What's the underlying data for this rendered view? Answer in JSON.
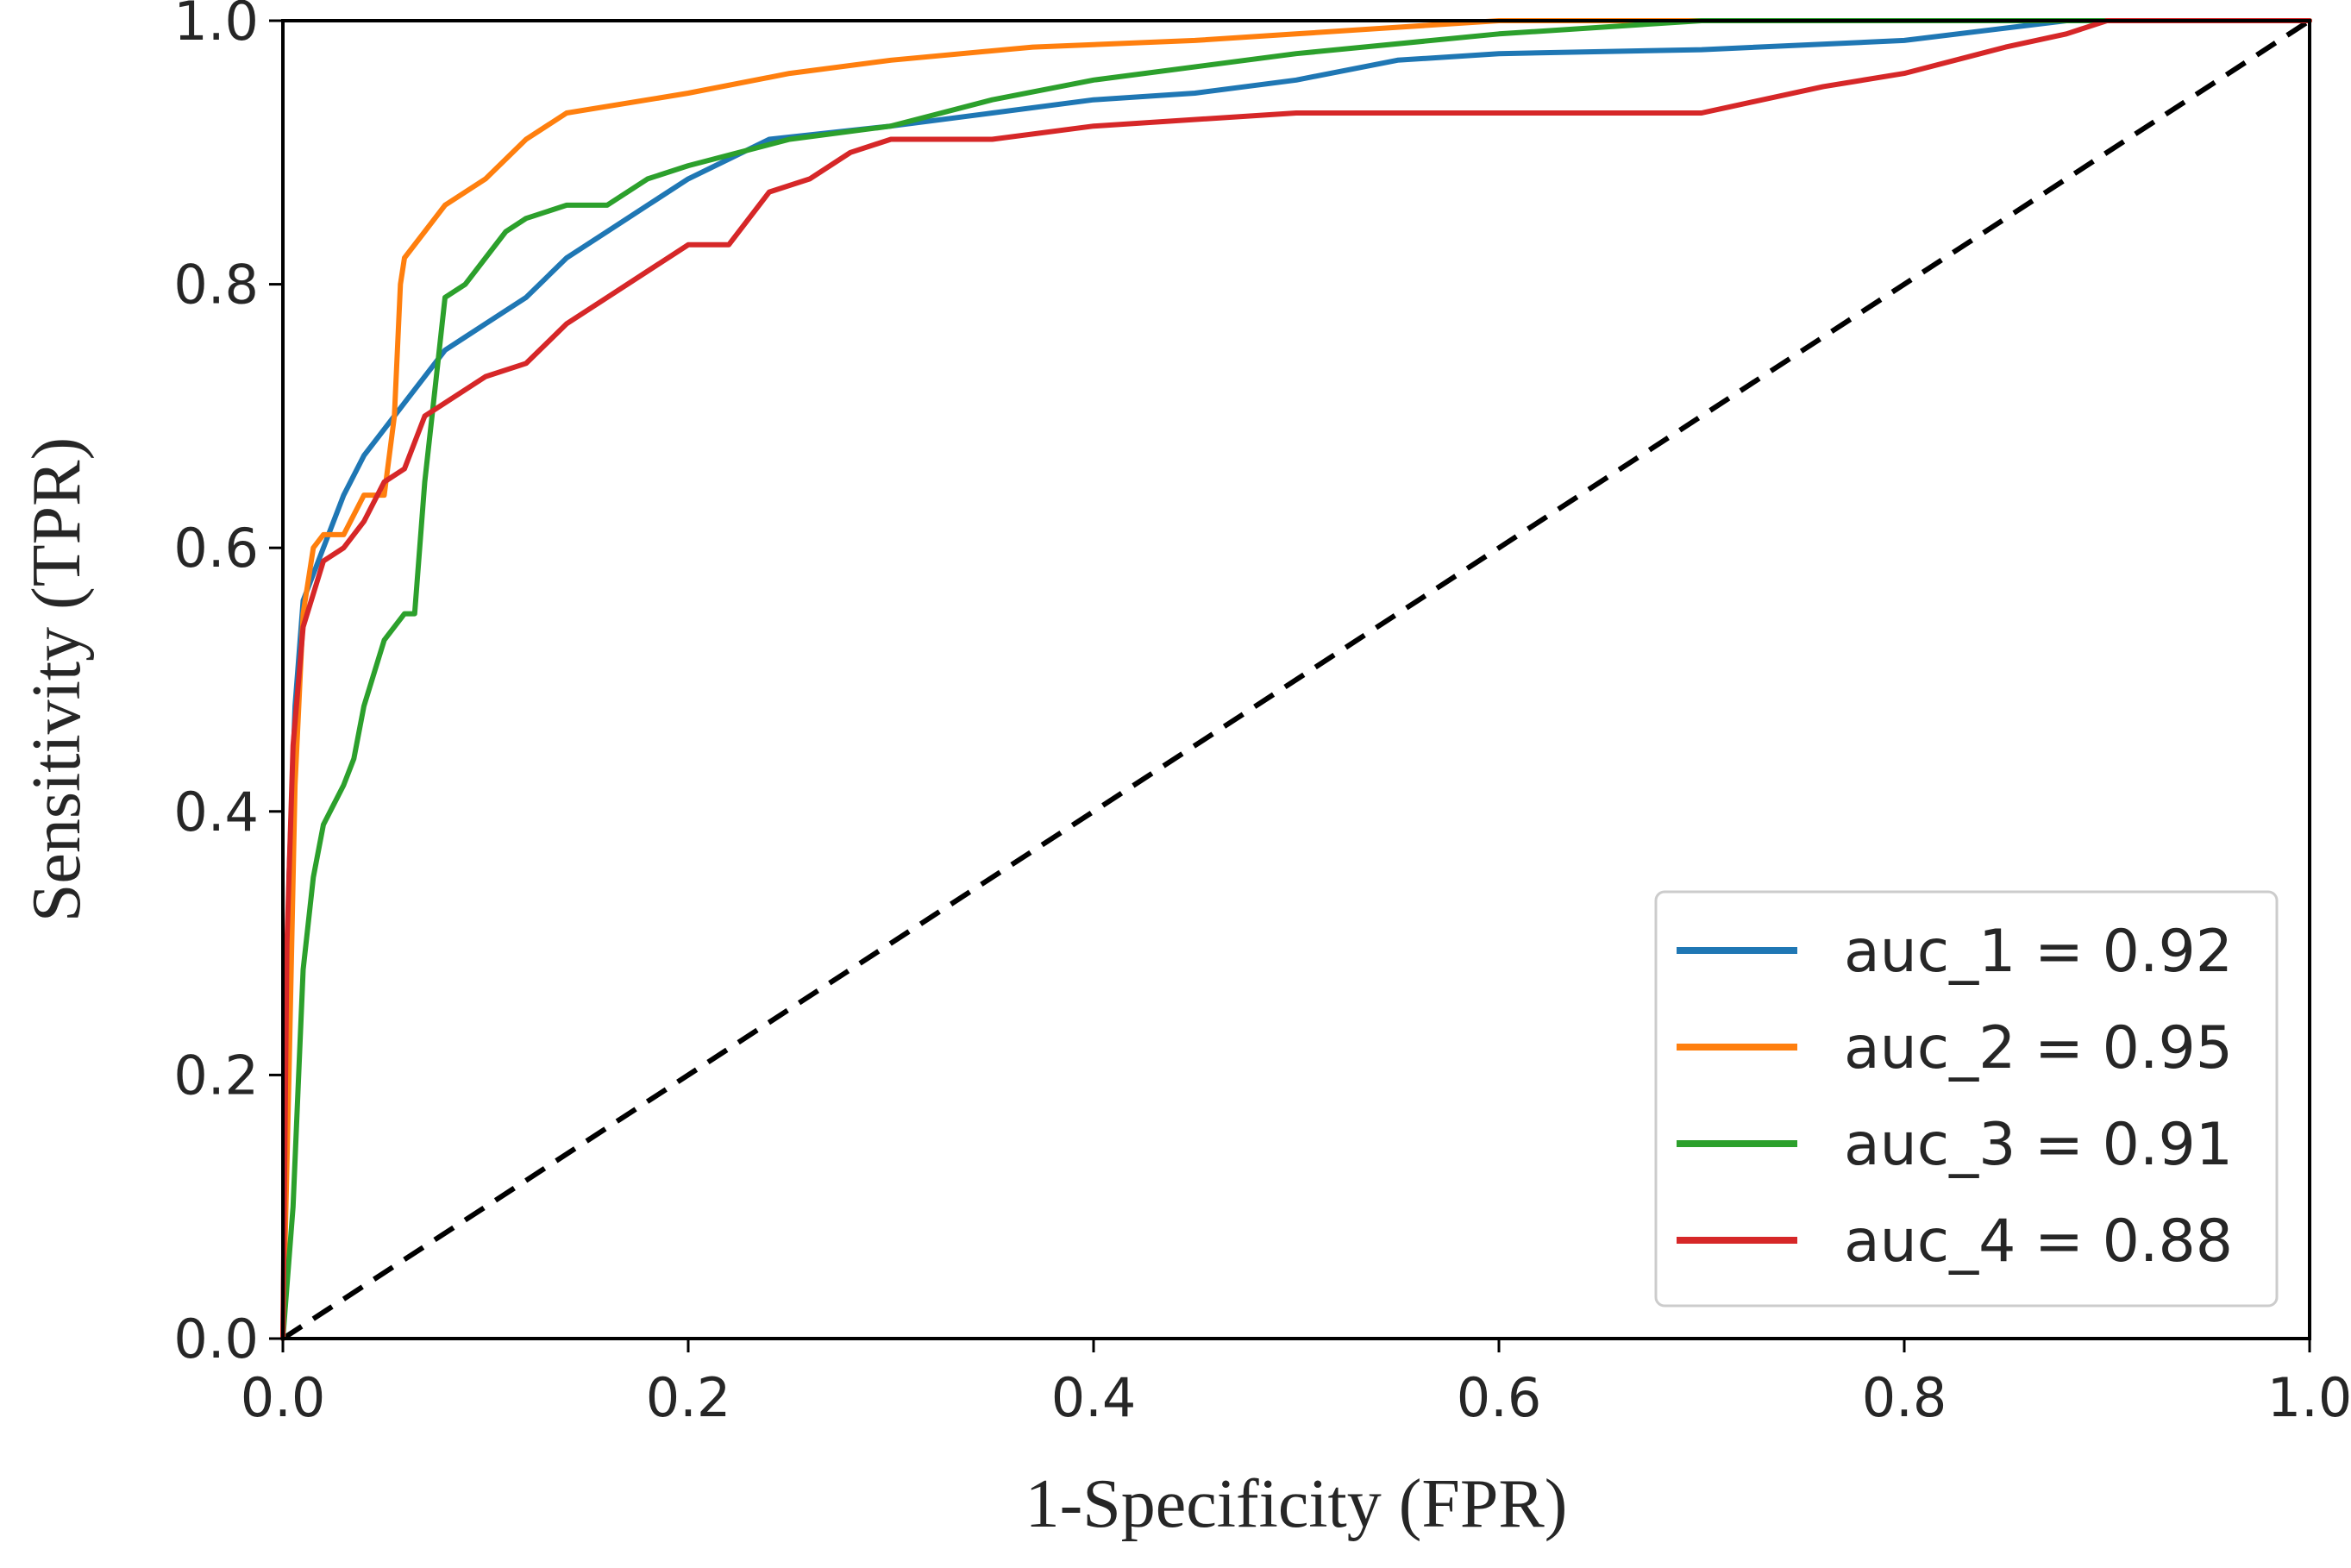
{
  "chart_data": {
    "type": "line",
    "title": "",
    "xlabel": "1-Specificity (FPR)",
    "ylabel": "Sensitivity (TPR)",
    "xlim": [
      0.0,
      1.0
    ],
    "ylim": [
      0.0,
      1.0
    ],
    "xticks": [
      0.0,
      0.2,
      0.4,
      0.6,
      0.8,
      1.0
    ],
    "yticks": [
      0.0,
      0.2,
      0.4,
      0.6,
      0.8,
      1.0
    ],
    "xtick_labels": [
      "0.0",
      "0.2",
      "0.4",
      "0.6",
      "0.8",
      "1.0"
    ],
    "ytick_labels": [
      "0.0",
      "0.2",
      "0.4",
      "0.6",
      "0.8",
      "1.0"
    ],
    "grid": false,
    "legend_position": "lower-right",
    "reference_line": {
      "style": "dashed",
      "color": "#000000",
      "x": [
        0.0,
        1.0
      ],
      "y": [
        0.0,
        1.0
      ]
    },
    "series": [
      {
        "name": "auc_1 = 0.92",
        "color": "#1f77b4",
        "x": [
          0.0,
          0.003,
          0.006,
          0.01,
          0.02,
          0.03,
          0.04,
          0.05,
          0.06,
          0.07,
          0.08,
          0.09,
          0.1,
          0.12,
          0.14,
          0.16,
          0.18,
          0.2,
          0.24,
          0.3,
          0.35,
          0.4,
          0.45,
          0.5,
          0.55,
          0.6,
          0.7,
          0.8,
          0.88,
          1.0
        ],
        "y": [
          0.0,
          0.35,
          0.48,
          0.56,
          0.6,
          0.64,
          0.67,
          0.69,
          0.71,
          0.73,
          0.75,
          0.76,
          0.77,
          0.79,
          0.82,
          0.84,
          0.86,
          0.88,
          0.91,
          0.92,
          0.93,
          0.94,
          0.945,
          0.955,
          0.97,
          0.975,
          0.978,
          0.985,
          1.0,
          1.0
        ]
      },
      {
        "name": "auc_2 = 0.95",
        "color": "#ff7f0e",
        "x": [
          0.0,
          0.003,
          0.006,
          0.01,
          0.015,
          0.02,
          0.03,
          0.04,
          0.05,
          0.055,
          0.058,
          0.06,
          0.07,
          0.08,
          0.1,
          0.12,
          0.14,
          0.18,
          0.2,
          0.25,
          0.3,
          0.37,
          0.45,
          0.5,
          0.55,
          0.6,
          0.7,
          1.0
        ],
        "y": [
          0.0,
          0.2,
          0.42,
          0.55,
          0.6,
          0.61,
          0.61,
          0.64,
          0.64,
          0.7,
          0.8,
          0.82,
          0.84,
          0.86,
          0.88,
          0.91,
          0.93,
          0.94,
          0.945,
          0.96,
          0.97,
          0.98,
          0.985,
          0.99,
          0.995,
          1.0,
          1.0,
          1.0
        ]
      },
      {
        "name": "auc_3 = 0.91",
        "color": "#2ca02c",
        "x": [
          0.0,
          0.005,
          0.01,
          0.015,
          0.02,
          0.03,
          0.035,
          0.04,
          0.05,
          0.06,
          0.065,
          0.07,
          0.075,
          0.08,
          0.09,
          0.1,
          0.11,
          0.12,
          0.14,
          0.16,
          0.18,
          0.2,
          0.25,
          0.3,
          0.35,
          0.4,
          0.5,
          0.6,
          0.7,
          1.0
        ],
        "y": [
          0.0,
          0.1,
          0.28,
          0.35,
          0.39,
          0.42,
          0.44,
          0.48,
          0.53,
          0.55,
          0.55,
          0.65,
          0.72,
          0.79,
          0.8,
          0.82,
          0.84,
          0.85,
          0.86,
          0.86,
          0.88,
          0.89,
          0.91,
          0.92,
          0.94,
          0.955,
          0.975,
          0.99,
          1.0,
          1.0
        ]
      },
      {
        "name": "auc_4 = 0.88",
        "color": "#d62728",
        "x": [
          0.0,
          0.002,
          0.005,
          0.01,
          0.02,
          0.03,
          0.04,
          0.05,
          0.06,
          0.07,
          0.08,
          0.1,
          0.12,
          0.14,
          0.16,
          0.18,
          0.2,
          0.22,
          0.24,
          0.26,
          0.28,
          0.3,
          0.35,
          0.4,
          0.5,
          0.6,
          0.7,
          0.76,
          0.8,
          0.85,
          0.88,
          0.9,
          1.0
        ],
        "y": [
          0.0,
          0.3,
          0.45,
          0.54,
          0.59,
          0.6,
          0.62,
          0.65,
          0.66,
          0.7,
          0.71,
          0.73,
          0.74,
          0.77,
          0.79,
          0.81,
          0.83,
          0.83,
          0.87,
          0.88,
          0.9,
          0.91,
          0.91,
          0.92,
          0.93,
          0.93,
          0.93,
          0.95,
          0.96,
          0.98,
          0.99,
          1.0,
          1.0
        ]
      }
    ]
  }
}
